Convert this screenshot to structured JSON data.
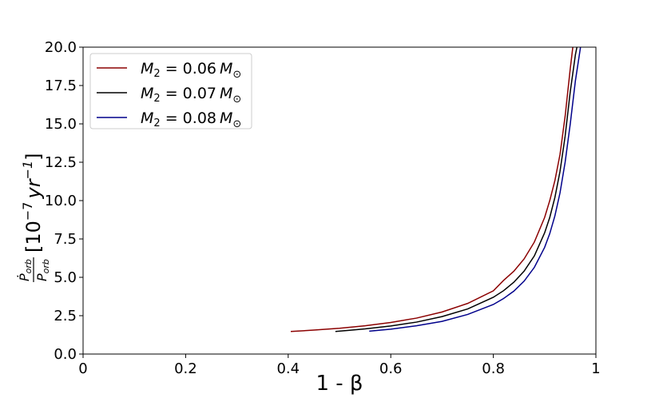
{
  "chart_data": {
    "type": "line",
    "xlabel": "1 - β",
    "ylabel": "Ṗ_orb / P_orb [10^-7 yr^-1]",
    "ylabel_parts": {
      "pdot": "Ṗ",
      "p": "P",
      "sub": "orb",
      "unit_open": "[10",
      "unit_exp": "−7",
      "unit_yr": "yr",
      "unit_yr_exp": "−1",
      "unit_close": "]"
    },
    "xlim": [
      0,
      1
    ],
    "ylim": [
      0,
      20
    ],
    "xticks": [
      0,
      0.2,
      0.4,
      0.6,
      0.8,
      1
    ],
    "xtick_labels": [
      "0",
      "0.2",
      "0.4",
      "0.6",
      "0.8",
      "1"
    ],
    "yticks": [
      0,
      2.5,
      5,
      7.5,
      10,
      12.5,
      15,
      17.5,
      20
    ],
    "ytick_labels": [
      "0.0",
      "2.5",
      "5.0",
      "7.5",
      "10.0",
      "12.5",
      "15.0",
      "17.5",
      "20.0"
    ],
    "grid": false,
    "legend_position": "top-left",
    "series": [
      {
        "name": "M_2 = 0.06 M_⊙",
        "label_parts": {
          "m": "M",
          "sub": "2",
          "eq": " = 0.06",
          "msun": "M",
          "sun": "⊙"
        },
        "color": "#8b0000",
        "x": [
          0.405,
          0.45,
          0.5,
          0.55,
          0.6,
          0.65,
          0.7,
          0.75,
          0.8,
          0.82,
          0.84,
          0.86,
          0.88,
          0.9,
          0.91,
          0.92,
          0.93,
          0.94,
          0.95,
          0.955
        ],
        "y": [
          1.47,
          1.56,
          1.68,
          1.84,
          2.06,
          2.34,
          2.74,
          3.3,
          4.12,
          4.8,
          5.4,
          6.2,
          7.3,
          8.9,
          10.0,
          11.3,
          13.0,
          15.5,
          18.6,
          20.0
        ]
      },
      {
        "name": "M_2 = 0.07 M_⊙",
        "label_parts": {
          "m": "M",
          "sub": "2",
          "eq": " = 0.07",
          "msun": "M",
          "sun": "⊙"
        },
        "color": "#000000",
        "x": [
          0.492,
          0.52,
          0.55,
          0.6,
          0.65,
          0.7,
          0.75,
          0.8,
          0.82,
          0.84,
          0.86,
          0.88,
          0.9,
          0.91,
          0.92,
          0.93,
          0.94,
          0.95,
          0.96,
          0.963
        ],
        "y": [
          1.47,
          1.55,
          1.64,
          1.83,
          2.08,
          2.44,
          2.94,
          3.7,
          4.13,
          4.68,
          5.4,
          6.4,
          7.9,
          8.9,
          10.2,
          11.9,
          14.2,
          17.1,
          19.5,
          20.0
        ]
      },
      {
        "name": "M_2 = 0.08 M_⊙",
        "label_parts": {
          "m": "M",
          "sub": "2",
          "eq": " = 0.08",
          "msun": "M",
          "sun": "⊙"
        },
        "color": "#00008b",
        "x": [
          0.558,
          0.6,
          0.65,
          0.7,
          0.75,
          0.8,
          0.82,
          0.84,
          0.86,
          0.88,
          0.9,
          0.91,
          0.92,
          0.93,
          0.94,
          0.95,
          0.96,
          0.97
        ],
        "y": [
          1.49,
          1.62,
          1.84,
          2.13,
          2.58,
          3.23,
          3.62,
          4.1,
          4.75,
          5.65,
          6.95,
          7.85,
          9.0,
          10.5,
          12.5,
          15.0,
          17.8,
          20.0
        ]
      }
    ]
  }
}
